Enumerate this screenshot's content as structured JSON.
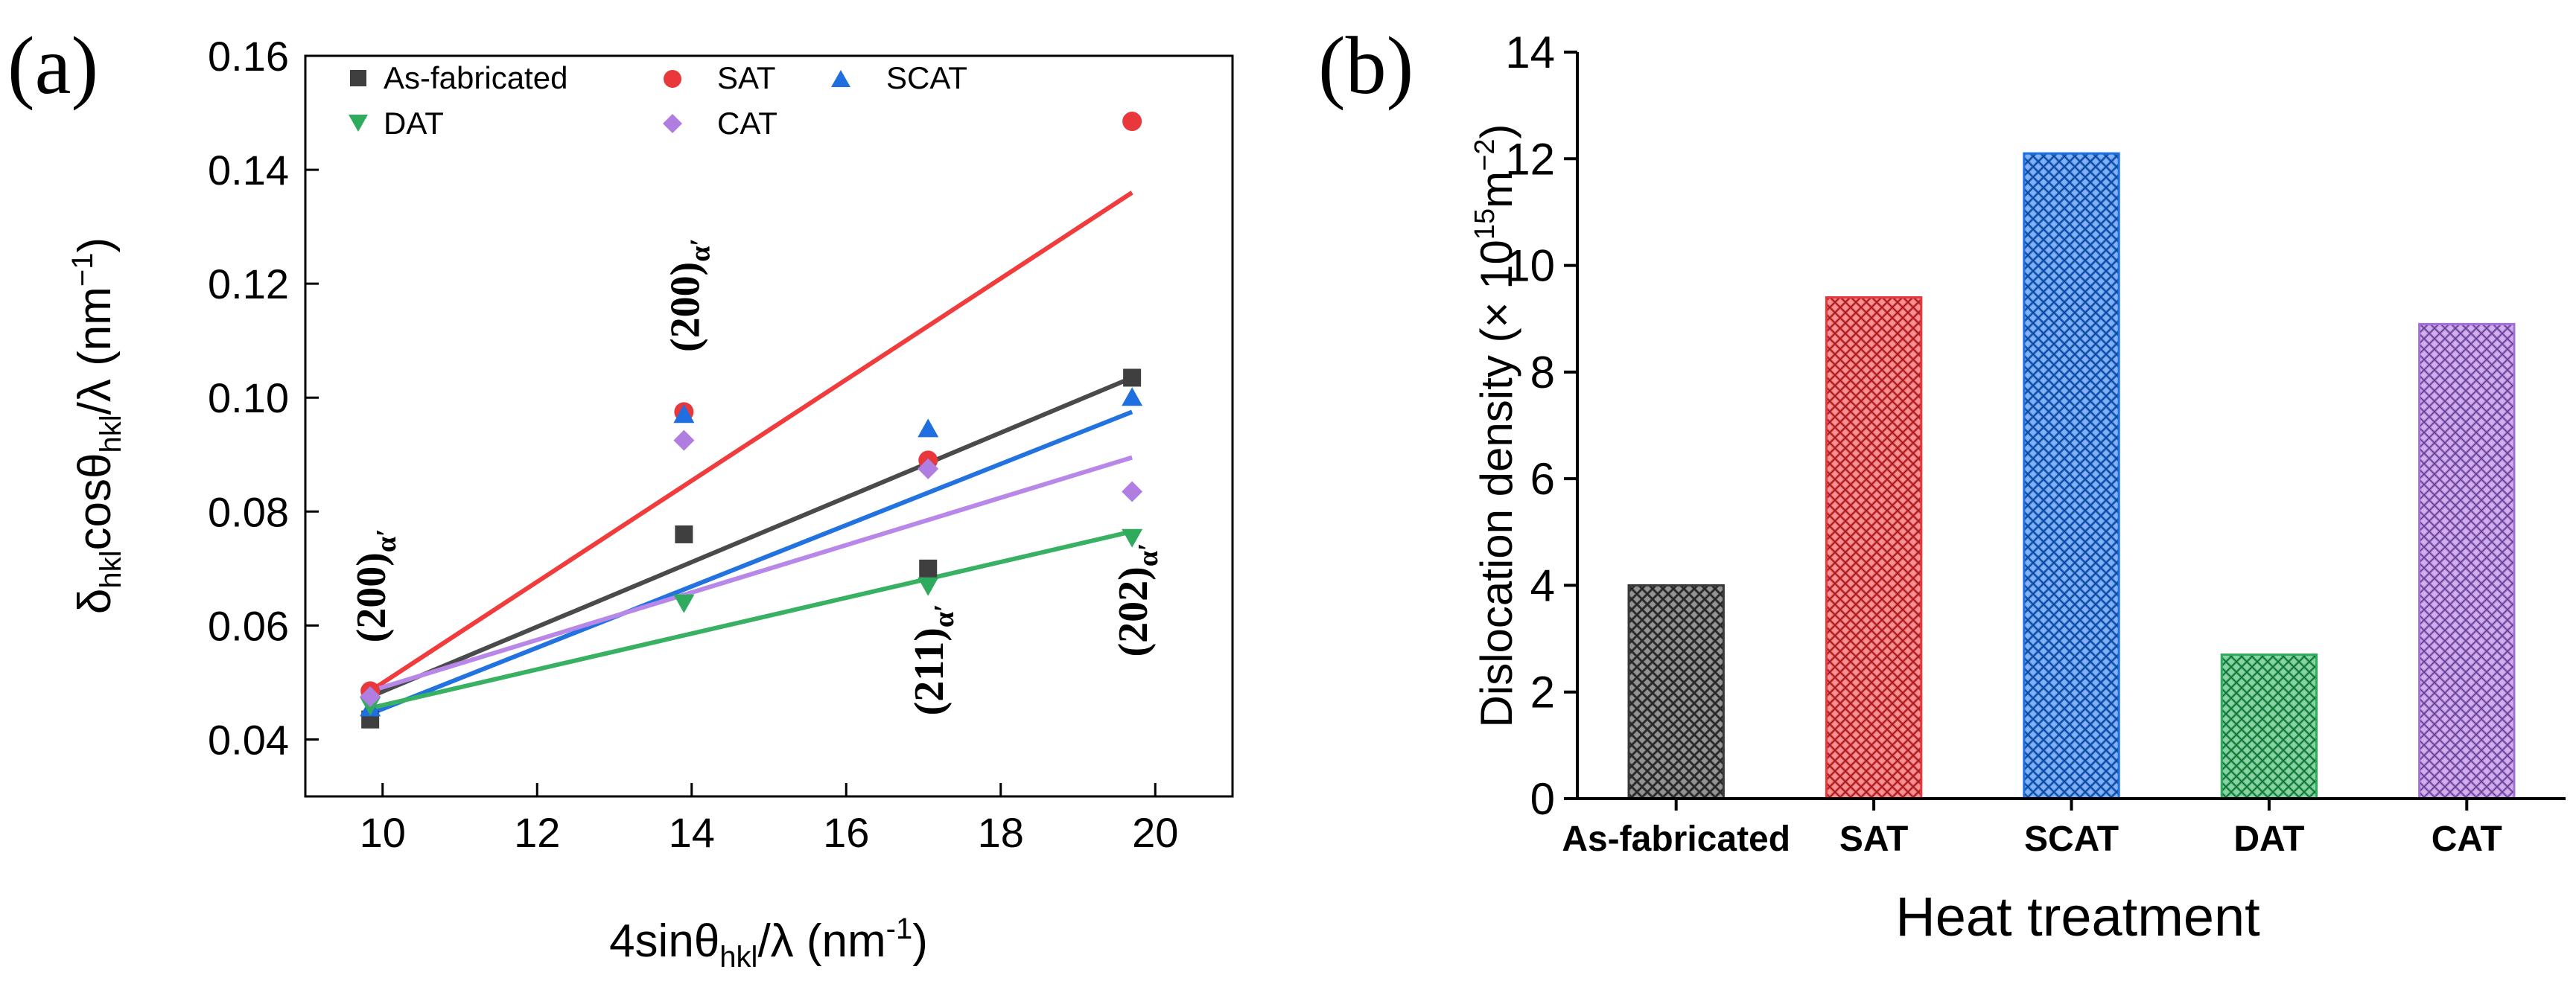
{
  "chart_data": [
    {
      "panel_label": "(a)",
      "type": "scatter",
      "xlabel": {
        "main": "4sinθ",
        "sub": "hkl",
        "rest": "/λ (nm",
        "sup": "-1",
        "end": ")"
      },
      "ylabel": {
        "a": "δ",
        "sub1": "hkl",
        "b": "cosθ",
        "sub2": "hkl",
        "c": "/λ (nm",
        "sup": "−1",
        "d": ")"
      },
      "xlim": [
        9,
        21
      ],
      "ylim": [
        0.03,
        0.16
      ],
      "xticks": [
        10,
        12,
        14,
        16,
        18,
        20
      ],
      "xtick_labels": [
        "10",
        "12",
        "14",
        "16",
        "18",
        "20"
      ],
      "yticks": [
        0.04,
        0.06,
        0.08,
        0.1,
        0.12,
        0.14,
        0.16
      ],
      "ytick_labels": [
        "0.04",
        "0.06",
        "0.08",
        "0.10",
        "0.12",
        "0.14",
        "0.16"
      ],
      "series": [
        {
          "name": "As-fabricated",
          "marker": "square",
          "color": "#3f3f3f",
          "line_color": "#4a4a4a",
          "x": [
            9.84,
            13.9,
            17.06,
            19.7
          ],
          "y": [
            0.0435,
            0.076,
            0.07,
            0.1035
          ],
          "fit": [
            [
              9.84,
              0.0475
            ],
            [
              19.7,
              0.1035
            ]
          ]
        },
        {
          "name": "SAT",
          "marker": "circle",
          "color": "#e8383c",
          "line_color": "#f03c3c",
          "x": [
            9.84,
            13.9,
            17.06,
            19.7
          ],
          "y": [
            0.0485,
            0.0975,
            0.089,
            0.1485
          ],
          "fit": [
            [
              9.84,
              0.0485
            ],
            [
              19.7,
              0.136
            ]
          ]
        },
        {
          "name": "SCAT",
          "marker": "triangle-up",
          "color": "#1f6fe0",
          "line_color": "#2273e0",
          "x": [
            9.84,
            13.9,
            17.06,
            19.7
          ],
          "y": [
            0.0455,
            0.097,
            0.0945,
            0.1
          ],
          "fit": [
            [
              9.84,
              0.0445
            ],
            [
              19.7,
              0.0975
            ]
          ]
        },
        {
          "name": "DAT",
          "marker": "triangle-down",
          "color": "#2eab5c",
          "line_color": "#38b163",
          "x": [
            9.84,
            13.9,
            17.06,
            19.7
          ],
          "y": [
            0.046,
            0.064,
            0.067,
            0.0755
          ],
          "fit": [
            [
              9.84,
              0.0455
            ],
            [
              19.7,
              0.0765
            ]
          ]
        },
        {
          "name": "CAT",
          "marker": "diamond",
          "color": "#b07ee0",
          "line_color": "#b888e8",
          "x": [
            9.84,
            13.9,
            17.06,
            19.7
          ],
          "y": [
            0.0475,
            0.0925,
            0.0875,
            0.0835
          ],
          "fit": [
            [
              9.84,
              0.0485
            ],
            [
              19.7,
              0.0895
            ]
          ]
        }
      ],
      "annotations": [
        {
          "main": "(200)",
          "sub": "α′",
          "x": 9.84,
          "y": 0.067,
          "rotate": -90
        },
        {
          "main": "(200)",
          "sub": "α′",
          "x": 13.9,
          "y": 0.118,
          "rotate": -90
        },
        {
          "main": "(211)",
          "sub": "α′",
          "x": 17.06,
          "y": 0.054,
          "rotate": -90
        },
        {
          "main": "(202)",
          "sub": "α′",
          "x": 19.7,
          "y": 0.0645,
          "rotate": -90
        }
      ],
      "legend_position": "top"
    },
    {
      "panel_label": "(b)",
      "type": "bar",
      "title": "",
      "xlabel": "Heat treatment",
      "ylabel": {
        "main": "Dislocation density (× 10",
        "sup1": "15",
        "mid": "m",
        "sup2": "−2",
        "end": ")"
      },
      "ylim": [
        0,
        14
      ],
      "yticks": [
        0,
        2,
        4,
        6,
        8,
        10,
        12,
        14
      ],
      "ytick_labels": [
        "0",
        "2",
        "4",
        "6",
        "8",
        "10",
        "12",
        "14"
      ],
      "categories": [
        "As-fabricated",
        "SAT",
        "SCAT",
        "DAT",
        "CAT"
      ],
      "values": [
        4.0,
        9.4,
        12.1,
        2.7,
        8.9
      ],
      "colors": [
        "#3a3a3a",
        "#e8383c",
        "#1f6fe0",
        "#2eab5c",
        "#a56fd8"
      ],
      "pattern": "cross-hatch"
    }
  ]
}
